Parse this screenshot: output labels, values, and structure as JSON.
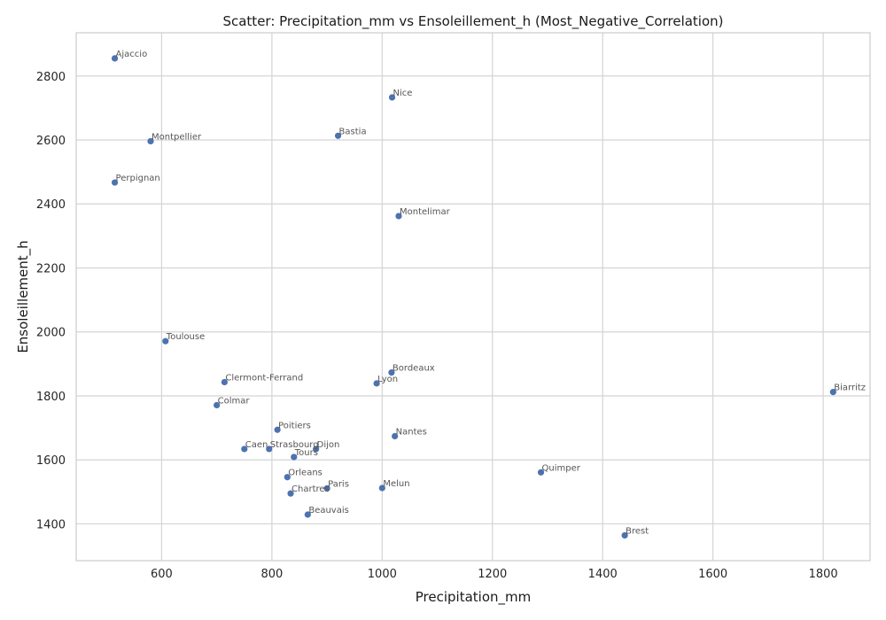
{
  "chart_data": {
    "type": "scatter",
    "title": "Scatter: Precipitation_mm vs Ensoleillement_h (Most_Negative_Correlation)",
    "xlabel": "Precipitation_mm",
    "ylabel": "Ensoleillement_h",
    "xlim": [
      445,
      1885
    ],
    "ylim": [
      1285,
      2935
    ],
    "xticks": [
      600,
      800,
      1000,
      1200,
      1400,
      1600,
      1800
    ],
    "yticks": [
      1400,
      1600,
      1800,
      2000,
      2200,
      2400,
      2600,
      2800
    ],
    "grid": true,
    "color": "#4c72b0",
    "points": [
      {
        "label": "Ajaccio",
        "x": 515,
        "y": 2855
      },
      {
        "label": "Nice",
        "x": 1018,
        "y": 2733
      },
      {
        "label": "Bastia",
        "x": 920,
        "y": 2613
      },
      {
        "label": "Montpellier",
        "x": 580,
        "y": 2596
      },
      {
        "label": "Perpignan",
        "x": 515,
        "y": 2467
      },
      {
        "label": "Montelimar",
        "x": 1030,
        "y": 2362
      },
      {
        "label": "Toulouse",
        "x": 607,
        "y": 1971
      },
      {
        "label": "Bordeaux",
        "x": 1017,
        "y": 1873
      },
      {
        "label": "Clermont-Ferrand",
        "x": 714,
        "y": 1843
      },
      {
        "label": "Lyon",
        "x": 990,
        "y": 1839
      },
      {
        "label": "Biarritz",
        "x": 1818,
        "y": 1812
      },
      {
        "label": "Colmar",
        "x": 700,
        "y": 1771
      },
      {
        "label": "Poitiers",
        "x": 810,
        "y": 1694
      },
      {
        "label": "Nantes",
        "x": 1023,
        "y": 1674
      },
      {
        "label": "Caen",
        "x": 750,
        "y": 1634
      },
      {
        "label": "Strasbourg",
        "x": 795,
        "y": 1634
      },
      {
        "label": "Dijon",
        "x": 880,
        "y": 1634
      },
      {
        "label": "Tours",
        "x": 840,
        "y": 1609
      },
      {
        "label": "Quimper",
        "x": 1288,
        "y": 1561
      },
      {
        "label": "Orleans",
        "x": 828,
        "y": 1546
      },
      {
        "label": "Paris",
        "x": 900,
        "y": 1511
      },
      {
        "label": "Melun",
        "x": 1000,
        "y": 1512
      },
      {
        "label": "Chartres",
        "x": 834,
        "y": 1495
      },
      {
        "label": "Beauvais",
        "x": 865,
        "y": 1429
      },
      {
        "label": "Brest",
        "x": 1440,
        "y": 1364
      }
    ]
  }
}
